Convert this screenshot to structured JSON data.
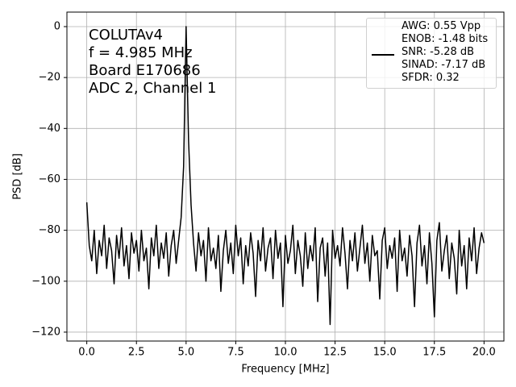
{
  "chart_data": {
    "type": "line",
    "xlabel": "Frequency [MHz]",
    "ylabel": "PSD [dB]",
    "annotations": [
      "COLUTAv4",
      "f = 4.985 MHz",
      "Board E170686",
      "ADC 2, Channel 1"
    ],
    "legend_position": "upper right",
    "grid": true,
    "xlim": [
      -1,
      21
    ],
    "ylim": [
      -123.5,
      5.7
    ],
    "xticks": [
      {
        "value": 0,
        "label": "0.0"
      },
      {
        "value": 2.5,
        "label": "2.5"
      },
      {
        "value": 5,
        "label": "5.0"
      },
      {
        "value": 7.5,
        "label": "7.5"
      },
      {
        "value": 10,
        "label": "10.0"
      },
      {
        "value": 12.5,
        "label": "12.5"
      },
      {
        "value": 15,
        "label": "15.0"
      },
      {
        "value": 17.5,
        "label": "17.5"
      },
      {
        "value": 20,
        "label": "20.0"
      }
    ],
    "yticks": [
      0,
      {
        "value": -20,
        "label": "−20"
      },
      {
        "value": -40,
        "label": "−40"
      },
      {
        "value": -60,
        "label": "−60"
      },
      {
        "value": -80,
        "label": "−80"
      },
      {
        "value": -100,
        "label": "−100"
      },
      {
        "value": -120,
        "label": "−120"
      }
    ],
    "x": [
      0,
      0.125,
      0.25,
      0.375,
      0.5,
      0.625,
      0.75,
      0.875,
      1,
      1.125,
      1.25,
      1.375,
      1.5,
      1.625,
      1.75,
      1.875,
      2,
      2.125,
      2.25,
      2.375,
      2.5,
      2.625,
      2.75,
      2.875,
      3,
      3.125,
      3.25,
      3.375,
      3.5,
      3.625,
      3.75,
      3.875,
      4,
      4.125,
      4.25,
      4.375,
      4.5,
      4.625,
      4.75,
      4.875,
      5,
      5.125,
      5.25,
      5.375,
      5.5,
      5.625,
      5.75,
      5.875,
      6,
      6.125,
      6.25,
      6.375,
      6.5,
      6.625,
      6.75,
      6.875,
      7,
      7.125,
      7.25,
      7.375,
      7.5,
      7.625,
      7.75,
      7.875,
      8,
      8.125,
      8.25,
      8.375,
      8.5,
      8.625,
      8.75,
      8.875,
      9,
      9.125,
      9.25,
      9.375,
      9.5,
      9.625,
      9.75,
      9.875,
      10,
      10.125,
      10.25,
      10.375,
      10.5,
      10.625,
      10.75,
      10.875,
      11,
      11.125,
      11.25,
      11.375,
      11.5,
      11.625,
      11.75,
      11.875,
      12,
      12.125,
      12.25,
      12.375,
      12.5,
      12.625,
      12.75,
      12.875,
      13,
      13.125,
      13.25,
      13.375,
      13.5,
      13.625,
      13.75,
      13.875,
      14,
      14.125,
      14.25,
      14.375,
      14.5,
      14.625,
      14.75,
      14.875,
      15,
      15.125,
      15.25,
      15.375,
      15.5,
      15.625,
      15.75,
      15.875,
      16,
      16.125,
      16.25,
      16.375,
      16.5,
      16.625,
      16.75,
      16.875,
      17,
      17.125,
      17.25,
      17.375,
      17.5,
      17.625,
      17.75,
      17.875,
      18,
      18.125,
      18.25,
      18.375,
      18.5,
      18.625,
      18.75,
      18.875,
      19,
      19.125,
      19.25,
      19.375,
      19.5,
      19.625,
      19.75,
      19.875,
      20
    ],
    "series": [
      {
        "name": "AWG: 0.55 Vpp\nENOB: -1.48 bits\nSNR: -5.28 dB\nSINAD: -7.17 dB\nSFDR: 0.32",
        "color": "#000000",
        "values": [
          -69,
          -86,
          -92,
          -80,
          -97,
          -84,
          -90,
          -78,
          -95,
          -83,
          -88,
          -101,
          -82,
          -91,
          -79,
          -94,
          -86,
          -99,
          -81,
          -89,
          -84,
          -96,
          -80,
          -92,
          -87,
          -103,
          -83,
          -90,
          -78,
          -95,
          -85,
          -91,
          -81,
          -98,
          -86,
          -80,
          -93,
          -84,
          -75,
          -55,
          0,
          -45,
          -70,
          -85,
          -96,
          -81,
          -90,
          -84,
          -100,
          -79,
          -92,
          -87,
          -95,
          -82,
          -104,
          -88,
          -80,
          -93,
          -85,
          -97,
          -78,
          -90,
          -83,
          -101,
          -86,
          -94,
          -81,
          -89,
          -106,
          -84,
          -92,
          -79,
          -96,
          -87,
          -83,
          -99,
          -80,
          -91,
          -85,
          -110,
          -82,
          -93,
          -88,
          -78,
          -97,
          -84,
          -90,
          -102,
          -81,
          -95,
          -86,
          -92,
          -79,
          -108,
          -87,
          -83,
          -98,
          -85,
          -117,
          -80,
          -91,
          -86,
          -94,
          -79,
          -89,
          -103,
          -84,
          -92,
          -81,
          -96,
          -87,
          -78,
          -93,
          -85,
          -100,
          -82,
          -90,
          -88,
          -107,
          -84,
          -79,
          -95,
          -86,
          -91,
          -83,
          -104,
          -80,
          -92,
          -87,
          -98,
          -82,
          -90,
          -110,
          -85,
          -78,
          -94,
          -86,
          -101,
          -81,
          -93,
          -114,
          -84,
          -77,
          -96,
          -88,
          -82,
          -99,
          -85,
          -91,
          -105,
          -80,
          -94,
          -86,
          -103,
          -83,
          -92,
          -79,
          -97,
          -87,
          -81,
          -85
        ]
      }
    ]
  }
}
